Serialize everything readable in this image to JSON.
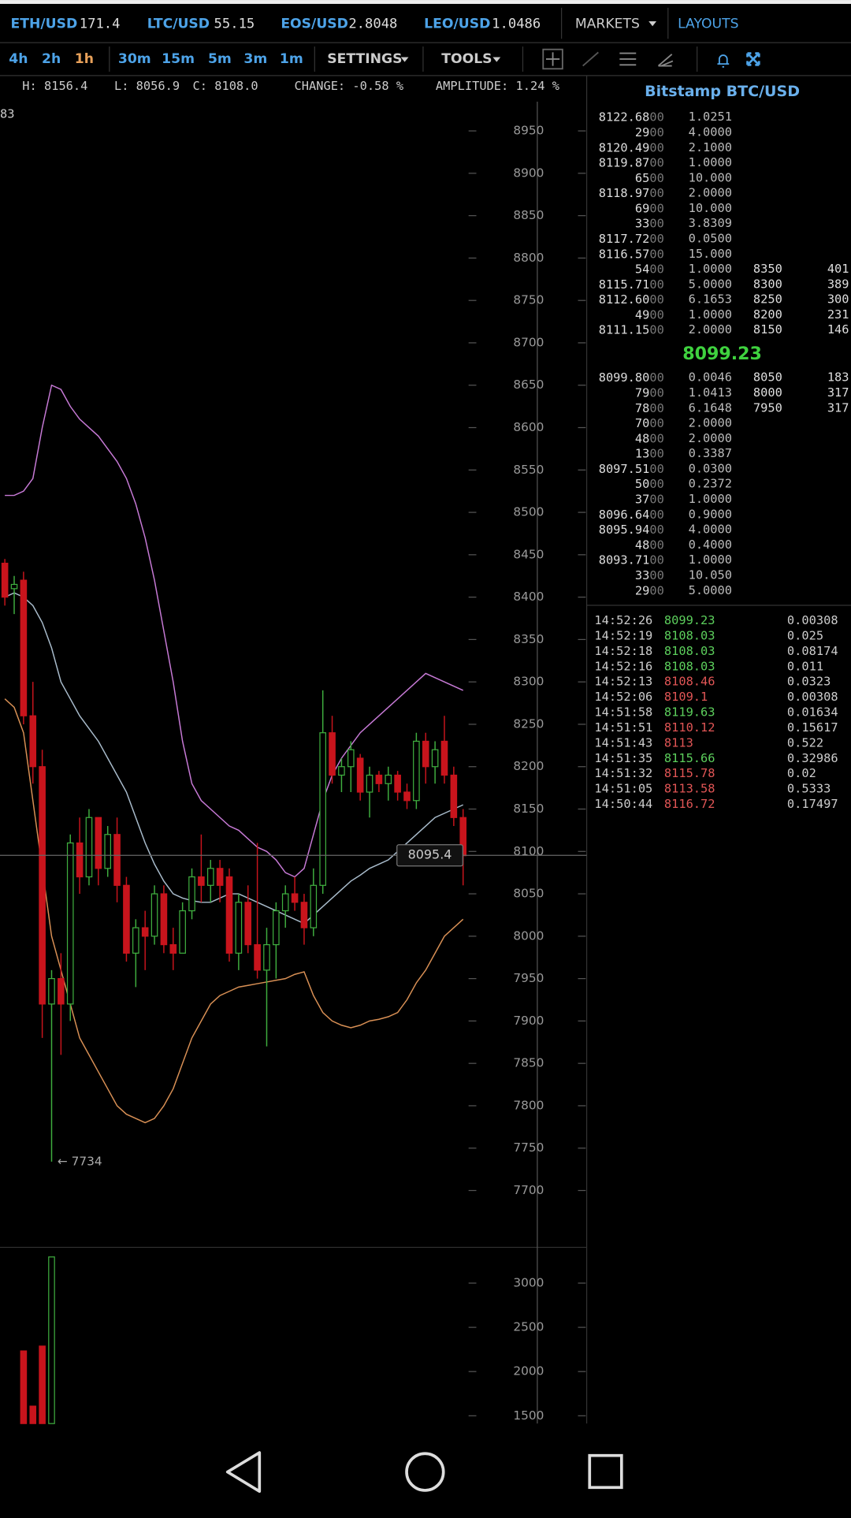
{
  "tickers": [
    {
      "pair": "ETH/USD",
      "price": "171.4"
    },
    {
      "pair": "LTC/USD",
      "price": "55.15"
    },
    {
      "pair": "EOS/USD",
      "price": "2.8048"
    },
    {
      "pair": "LEO/USD",
      "price": "1.0486"
    }
  ],
  "menus": {
    "markets": "MARKETS",
    "layouts": "LAYOUTS"
  },
  "timeframes": [
    {
      "label": "4h",
      "color": "#4da3e8"
    },
    {
      "label": "2h",
      "color": "#4da3e8"
    },
    {
      "label": "1h",
      "color": "#e8a15a"
    },
    {
      "label": "30m",
      "color": "#4da3e8"
    },
    {
      "label": "15m",
      "color": "#4da3e8"
    },
    {
      "label": "5m",
      "color": "#4da3e8"
    },
    {
      "label": "3m",
      "color": "#4da3e8"
    },
    {
      "label": "1m",
      "color": "#4da3e8"
    }
  ],
  "toolbar": {
    "settings": "SETTINGS",
    "tools": "TOOLS"
  },
  "ohlc": {
    "partial": "83",
    "high": "H: 8156.4",
    "low": "L: 8056.9",
    "close": "C: 8108.0",
    "change": "CHANGE: -0.58 %",
    "amplitude": "AMPLITUDE: 1.24 %"
  },
  "chart_data": [
    {
      "type": "candlestick",
      "ylim": [
        7633,
        9013
      ],
      "yticks": [
        7700,
        7750,
        7800,
        7850,
        7900,
        7950,
        8000,
        8050,
        8100,
        8150,
        8200,
        8250,
        8300,
        8350,
        8400,
        8450,
        8500,
        8550,
        8600,
        8650,
        8700,
        8750,
        8800,
        8850,
        8900,
        8950
      ],
      "up_color": "#3fae3f",
      "down_color": "#c8141c",
      "open": [
        8440,
        8410,
        8420,
        8260,
        8200,
        7920,
        7950,
        7920,
        8110,
        8070,
        8140,
        8080,
        8120,
        8060,
        7980,
        8010,
        8000,
        8050,
        7990,
        7980,
        8030,
        8070,
        8060,
        8080,
        8070,
        7980,
        8040,
        7990,
        7960,
        7990,
        8030,
        8050,
        8040,
        8010,
        8060,
        8240,
        8190,
        8200,
        8210,
        8170,
        8190,
        8180,
        8190,
        8170,
        8160,
        8230,
        8200,
        8230,
        8190,
        8140
      ],
      "high": [
        8445,
        8425,
        8430,
        8300,
        8220,
        7960,
        7980,
        8120,
        8140,
        8150,
        8140,
        8130,
        8140,
        8070,
        8020,
        8030,
        8060,
        8060,
        8010,
        8040,
        8080,
        8120,
        8090,
        8090,
        8080,
        8050,
        8060,
        8110,
        8010,
        8040,
        8060,
        8070,
        8050,
        8080,
        8290,
        8260,
        8210,
        8230,
        8215,
        8200,
        8195,
        8200,
        8195,
        8180,
        8240,
        8240,
        8230,
        8260,
        8200,
        8150
      ],
      "low": [
        8390,
        8380,
        8250,
        8180,
        7880,
        7734,
        7860,
        7900,
        8050,
        8060,
        8060,
        8070,
        8040,
        7970,
        7940,
        7960,
        7990,
        7980,
        7960,
        7980,
        8020,
        8040,
        8040,
        8040,
        7970,
        7960,
        7980,
        7950,
        7870,
        7950,
        8010,
        8030,
        7990,
        8000,
        8050,
        8180,
        8170,
        8170,
        8160,
        8140,
        8170,
        8160,
        8160,
        8150,
        8150,
        8180,
        8180,
        8180,
        8130,
        8060
      ],
      "close": [
        8400,
        8415,
        8260,
        8200,
        7920,
        7950,
        7920,
        8110,
        8070,
        8140,
        8080,
        8120,
        8060,
        7980,
        8010,
        8000,
        8050,
        7990,
        7980,
        8030,
        8070,
        8060,
        8080,
        8060,
        7980,
        8040,
        7990,
        7960,
        7990,
        8030,
        8050,
        8040,
        8010,
        8060,
        8240,
        8190,
        8200,
        8220,
        8170,
        8190,
        8180,
        8190,
        8170,
        8160,
        8230,
        8200,
        8220,
        8190,
        8140,
        8095
      ],
      "series": [
        {
          "color": "#c77ad6",
          "values": [
            8520,
            8520,
            8525,
            8540,
            8600,
            8650,
            8645,
            8625,
            8610,
            8600,
            8590,
            8575,
            8560,
            8540,
            8510,
            8470,
            8420,
            8360,
            8300,
            8230,
            8180,
            8160,
            8150,
            8140,
            8130,
            8125,
            8115,
            8105,
            8100,
            8090,
            8075,
            8070,
            8080,
            8120,
            8160,
            8190,
            8210,
            8225,
            8240,
            8250,
            8260,
            8270,
            8280,
            8290,
            8300,
            8310,
            8305,
            8300,
            8295,
            8290
          ]
        },
        {
          "color": "#a9bccc",
          "values": [
            8400,
            8405,
            8400,
            8390,
            8370,
            8340,
            8300,
            8280,
            8260,
            8245,
            8230,
            8210,
            8190,
            8170,
            8140,
            8110,
            8085,
            8065,
            8050,
            8045,
            8042,
            8040,
            8040,
            8045,
            8050,
            8050,
            8045,
            8040,
            8035,
            8030,
            8025,
            8020,
            8015,
            8025,
            8035,
            8045,
            8055,
            8065,
            8072,
            8080,
            8085,
            8090,
            8100,
            8110,
            8120,
            8130,
            8140,
            8145,
            8150,
            8155
          ]
        },
        {
          "color": "#d99055",
          "values": [
            8280,
            8270,
            8240,
            8160,
            8080,
            8000,
            7960,
            7920,
            7880,
            7860,
            7840,
            7820,
            7800,
            7790,
            7785,
            7780,
            7785,
            7800,
            7820,
            7850,
            7880,
            7900,
            7920,
            7930,
            7935,
            7940,
            7942,
            7944,
            7946,
            7948,
            7950,
            7955,
            7958,
            7930,
            7910,
            7900,
            7895,
            7892,
            7895,
            7900,
            7902,
            7905,
            7910,
            7925,
            7945,
            7960,
            7980,
            8000,
            8010,
            8020
          ]
        }
      ],
      "crosshair": 8095.4,
      "annotation": "← 7734"
    },
    {
      "type": "volume",
      "ylim": [
        1412,
        3383
      ],
      "yticks": [
        1500,
        2000,
        2500,
        3000
      ],
      "values": [
        null,
        null,
        2233,
        1609,
        2288,
        3296,
        null,
        null,
        null,
        null,
        null,
        null,
        null,
        null,
        null,
        null,
        null,
        null,
        null,
        null,
        null,
        null,
        null,
        null,
        null,
        null,
        null,
        null,
        null,
        null,
        null,
        null,
        null,
        null,
        null,
        null,
        null,
        null,
        null,
        null,
        null,
        null,
        null,
        null,
        null,
        null,
        null,
        null,
        null,
        null
      ]
    }
  ],
  "order_book": {
    "title": "Bitstamp BTC/USD",
    "asks": [
      {
        "price": "8122.68",
        "suffix": "00",
        "amount": "1.0251"
      },
      {
        "price": "29",
        "suffix": "00",
        "amount": "4.0000"
      },
      {
        "price": "8120.49",
        "suffix": "00",
        "amount": "2.1000"
      },
      {
        "price": "8119.87",
        "suffix": "00",
        "amount": "1.0000"
      },
      {
        "price": "65",
        "suffix": "00",
        "amount": "10.000"
      },
      {
        "price": "8118.97",
        "suffix": "00",
        "amount": "2.0000"
      },
      {
        "price": "69",
        "suffix": "00",
        "amount": "10.000"
      },
      {
        "price": "33",
        "suffix": "00",
        "amount": "3.8309"
      },
      {
        "price": "8117.72",
        "suffix": "00",
        "amount": "0.0500"
      },
      {
        "price": "8116.57",
        "suffix": "00",
        "amount": "15.000"
      },
      {
        "price": "54",
        "suffix": "00",
        "amount": "1.0000",
        "depth_price": "8350",
        "depth_total": "401"
      },
      {
        "price": "8115.71",
        "suffix": "00",
        "amount": "5.0000",
        "depth_price": "8300",
        "depth_total": "389"
      },
      {
        "price": "8112.60",
        "suffix": "00",
        "amount": "6.1653",
        "depth_price": "8250",
        "depth_total": "300"
      },
      {
        "price": "49",
        "suffix": "00",
        "amount": "1.0000",
        "depth_price": "8200",
        "depth_total": "231"
      },
      {
        "price": "8111.15",
        "suffix": "00",
        "amount": "2.0000",
        "depth_price": "8150",
        "depth_total": "146"
      }
    ],
    "last": "8099.23",
    "bids": [
      {
        "price": "8099.80",
        "suffix": "00",
        "amount": "0.0046",
        "depth_price": "8050",
        "depth_total": "183"
      },
      {
        "price": "79",
        "suffix": "00",
        "amount": "1.0413",
        "depth_price": "8000",
        "depth_total": "317"
      },
      {
        "price": "78",
        "suffix": "00",
        "amount": "6.1648",
        "depth_price": "7950",
        "depth_total": "317"
      },
      {
        "price": "70",
        "suffix": "00",
        "amount": "2.0000"
      },
      {
        "price": "48",
        "suffix": "00",
        "amount": "2.0000"
      },
      {
        "price": "13",
        "suffix": "00",
        "amount": "0.3387"
      },
      {
        "price": "8097.51",
        "suffix": "00",
        "amount": "0.0300"
      },
      {
        "price": "50",
        "suffix": "00",
        "amount": "0.2372"
      },
      {
        "price": "37",
        "suffix": "00",
        "amount": "1.0000"
      },
      {
        "price": "8096.64",
        "suffix": "00",
        "amount": "0.9000"
      },
      {
        "price": "8095.94",
        "suffix": "00",
        "amount": "4.0000"
      },
      {
        "price": "48",
        "suffix": "00",
        "amount": "0.4000"
      },
      {
        "price": "8093.71",
        "suffix": "00",
        "amount": "1.0000"
      },
      {
        "price": "33",
        "suffix": "00",
        "amount": "10.050"
      },
      {
        "price": "29",
        "suffix": "00",
        "amount": "5.0000"
      }
    ]
  },
  "trades": [
    {
      "time": "14:52:26",
      "price": "8099.23",
      "amount": "0.00308",
      "color": "#5ccf5c"
    },
    {
      "time": "14:52:19",
      "price": "8108.03",
      "amount": "0.025",
      "color": "#5ccf5c"
    },
    {
      "time": "14:52:18",
      "price": "8108.03",
      "amount": "0.08174",
      "color": "#5ccf5c"
    },
    {
      "time": "14:52:16",
      "price": "8108.03",
      "amount": "0.011",
      "color": "#5ccf5c"
    },
    {
      "time": "14:52:13",
      "price": "8108.46",
      "amount": "0.0323",
      "color": "#e05555"
    },
    {
      "time": "14:52:06",
      "price": "8109.1",
      "amount": "0.00308",
      "color": "#e05555"
    },
    {
      "time": "14:51:58",
      "price": "8119.63",
      "amount": "0.01634",
      "color": "#5ccf5c"
    },
    {
      "time": "14:51:51",
      "price": "8110.12",
      "amount": "0.15617",
      "color": "#e05555"
    },
    {
      "time": "14:51:43",
      "price": "8113",
      "amount": "0.522",
      "color": "#e05555"
    },
    {
      "time": "14:51:35",
      "price": "8115.66",
      "amount": "0.32986",
      "color": "#5ccf5c"
    },
    {
      "time": "14:51:32",
      "price": "8115.78",
      "amount": "0.02",
      "color": "#e05555"
    },
    {
      "time": "14:51:05",
      "price": "8113.58",
      "amount": "0.5333",
      "color": "#e05555"
    },
    {
      "time": "14:50:44",
      "price": "8116.72",
      "amount": "0.17497",
      "color": "#e05555"
    }
  ]
}
